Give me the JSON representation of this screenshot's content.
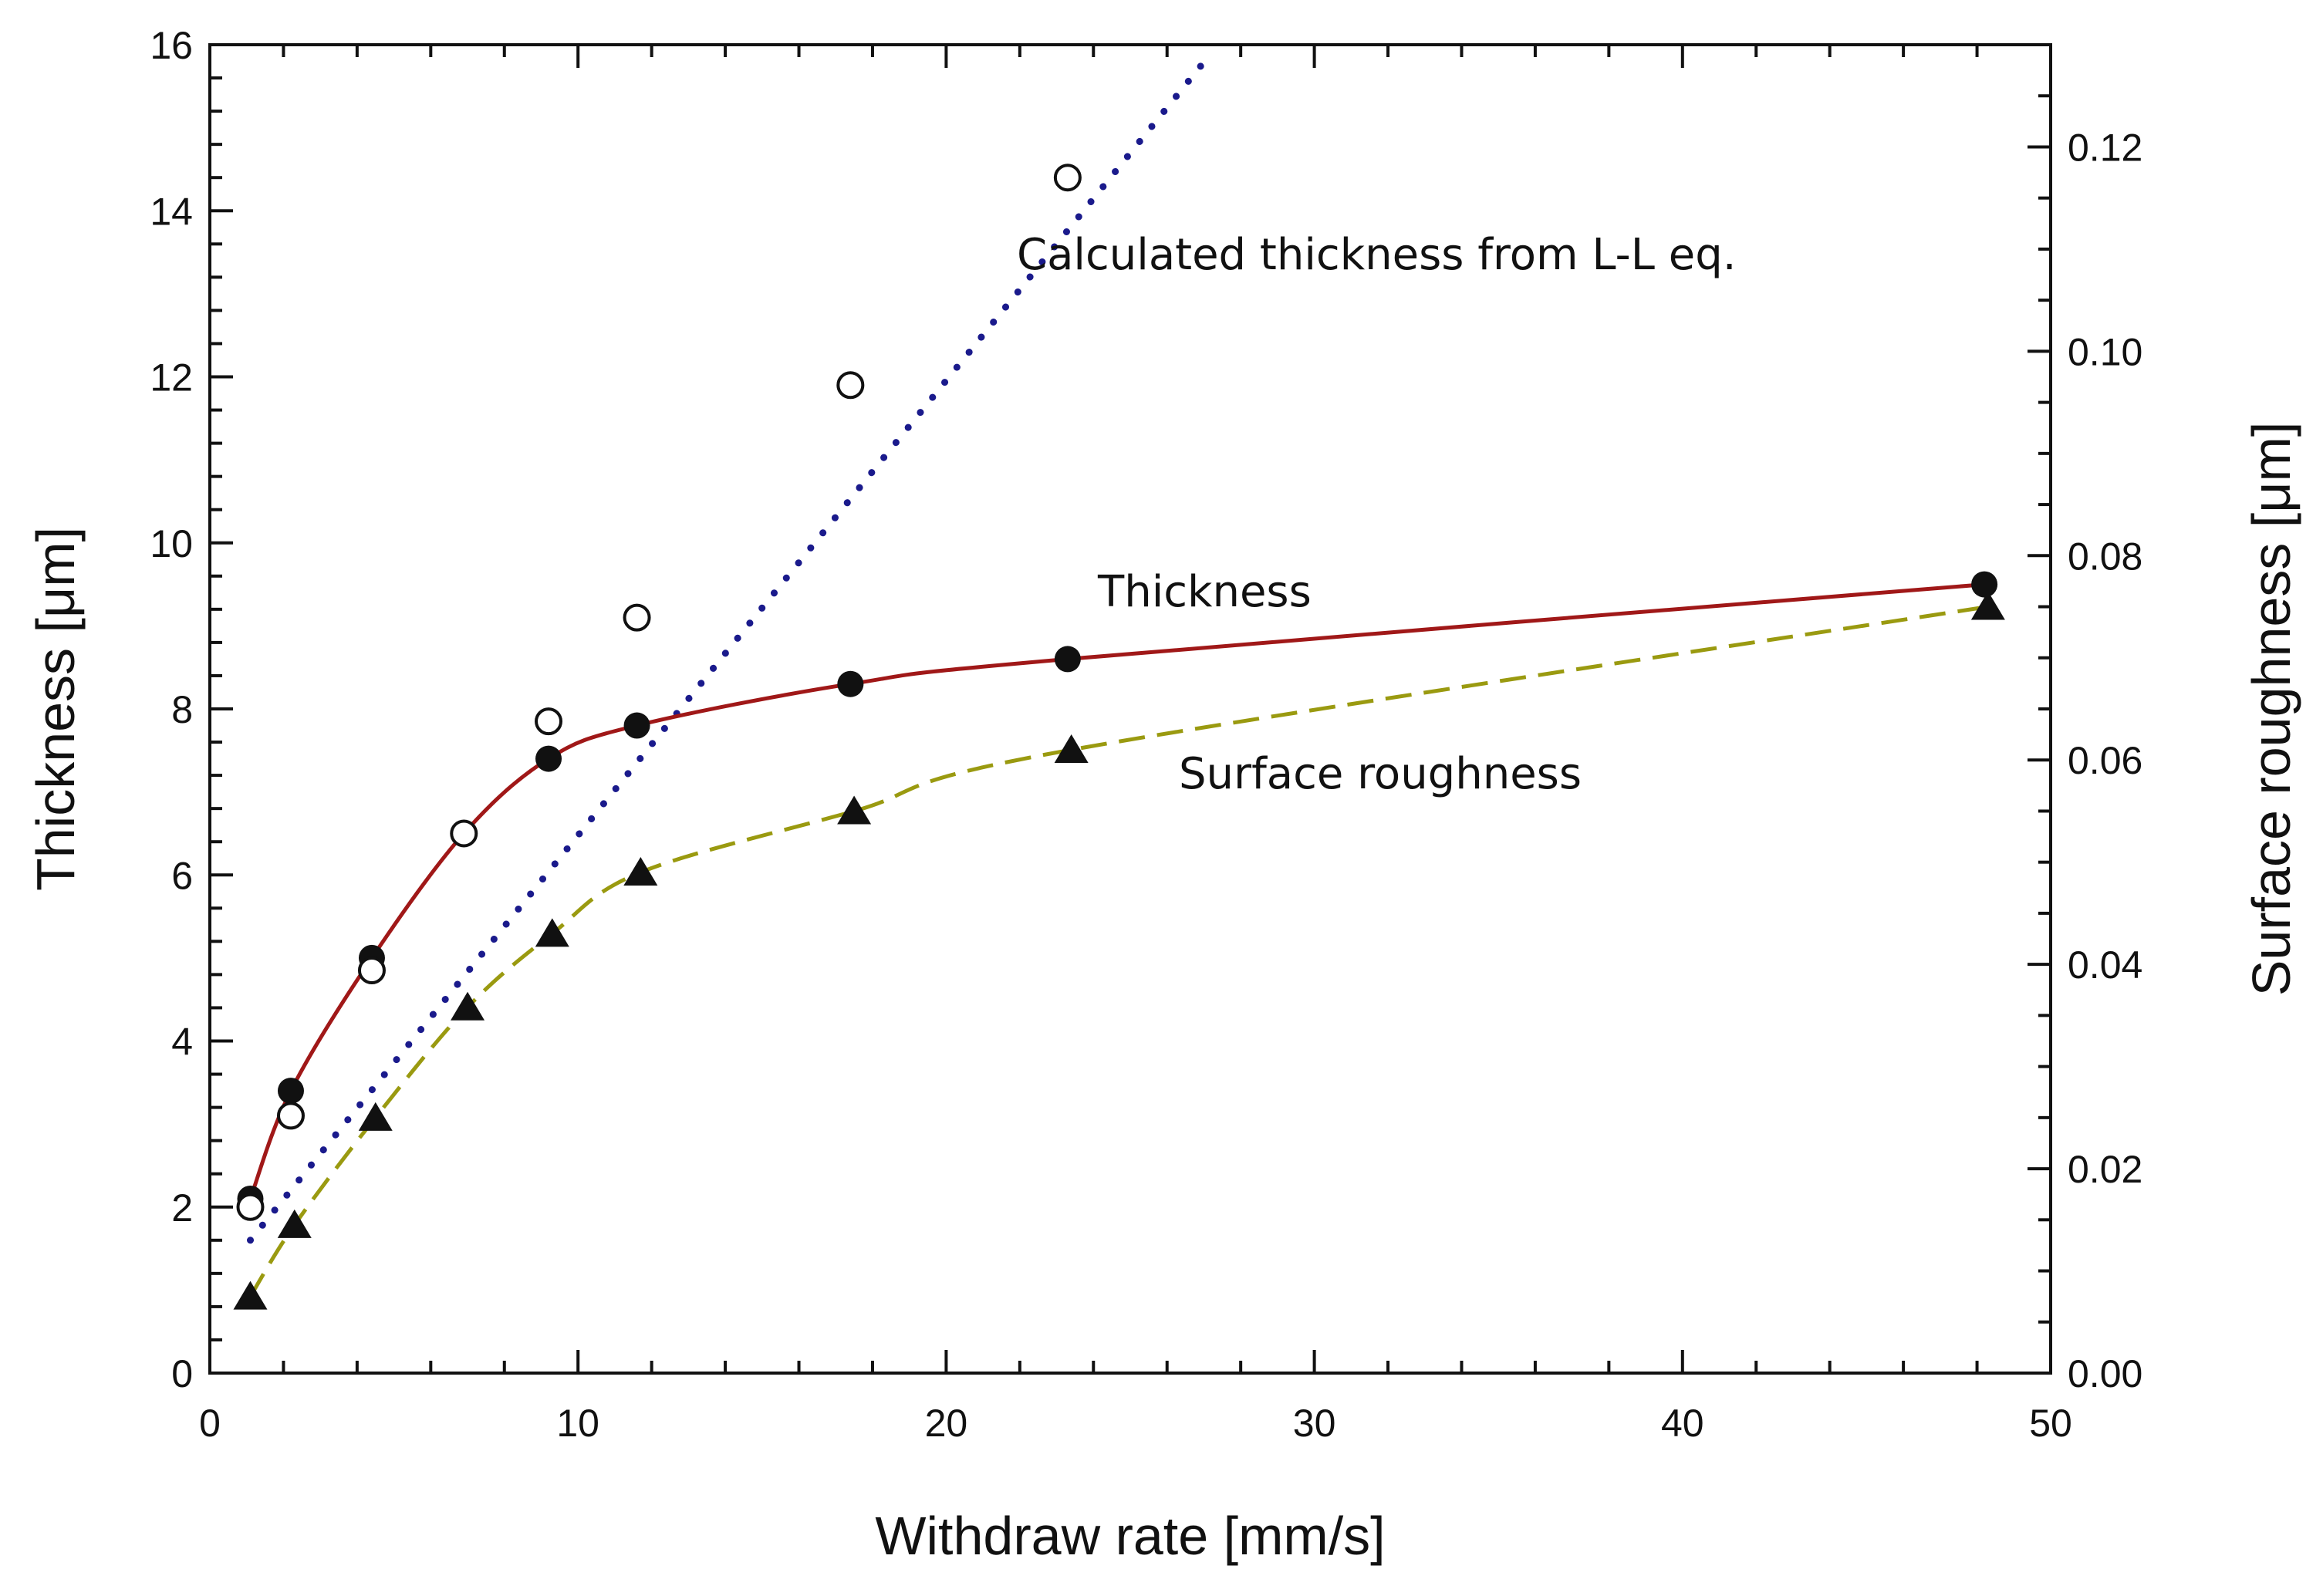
{
  "chart_data": {
    "type": "line",
    "xlabel": "Withdraw rate [mm/s]",
    "ylabel": "Thickness [μm]",
    "y2label": "Surface roughness [μm]",
    "xlim": [
      0,
      50
    ],
    "ylim": [
      0,
      16
    ],
    "y2lim": [
      0,
      0.13
    ],
    "xticks": [
      "0",
      "10",
      "20",
      "30",
      "40",
      "50"
    ],
    "yticks": [
      "0",
      "2",
      "4",
      "6",
      "8",
      "10",
      "12",
      "14",
      "16"
    ],
    "y2ticks": [
      "0.00",
      "0.02",
      "0.04",
      "0.06",
      "0.08",
      "0.10",
      "0.12"
    ],
    "grid": false,
    "legend": "none",
    "annotations": {
      "calculated": "Calculated thickness from L-L eq.",
      "thickness": "Thickness",
      "roughness": "Surface roughness"
    },
    "series": [
      {
        "key": "thickness",
        "axis": "left",
        "marker": "filled-circle",
        "line": "solid",
        "color": "#a01818",
        "x": [
          1.1,
          2.2,
          4.4,
          6.9,
          9.2,
          11.6,
          17.4,
          23.3,
          48.2
        ],
        "y": [
          2.1,
          3.4,
          5.0,
          6.5,
          7.4,
          7.8,
          8.3,
          8.6,
          9.5
        ]
      },
      {
        "key": "calculated",
        "axis": "left",
        "marker": "open-circle",
        "line": "dotted",
        "color": "#1a1a8c",
        "x": [
          1.1,
          2.2,
          4.4,
          6.9,
          9.2,
          11.6,
          17.4,
          23.3
        ],
        "y": [
          2.0,
          3.1,
          4.85,
          6.5,
          7.85,
          9.1,
          11.9,
          14.4
        ],
        "fit_line": {
          "x": [
            1.1,
            27.2
          ],
          "y": [
            1.6,
            15.9
          ]
        }
      },
      {
        "key": "roughness",
        "axis": "right",
        "marker": "filled-triangle",
        "line": "dashed",
        "color": "#9a9a10",
        "x": [
          1.1,
          2.3,
          4.5,
          7.0,
          9.3,
          11.7,
          17.5,
          23.4,
          48.3
        ],
        "y": [
          0.0075,
          0.0145,
          0.025,
          0.0358,
          0.043,
          0.049,
          0.055,
          0.061,
          0.075
        ]
      }
    ]
  }
}
